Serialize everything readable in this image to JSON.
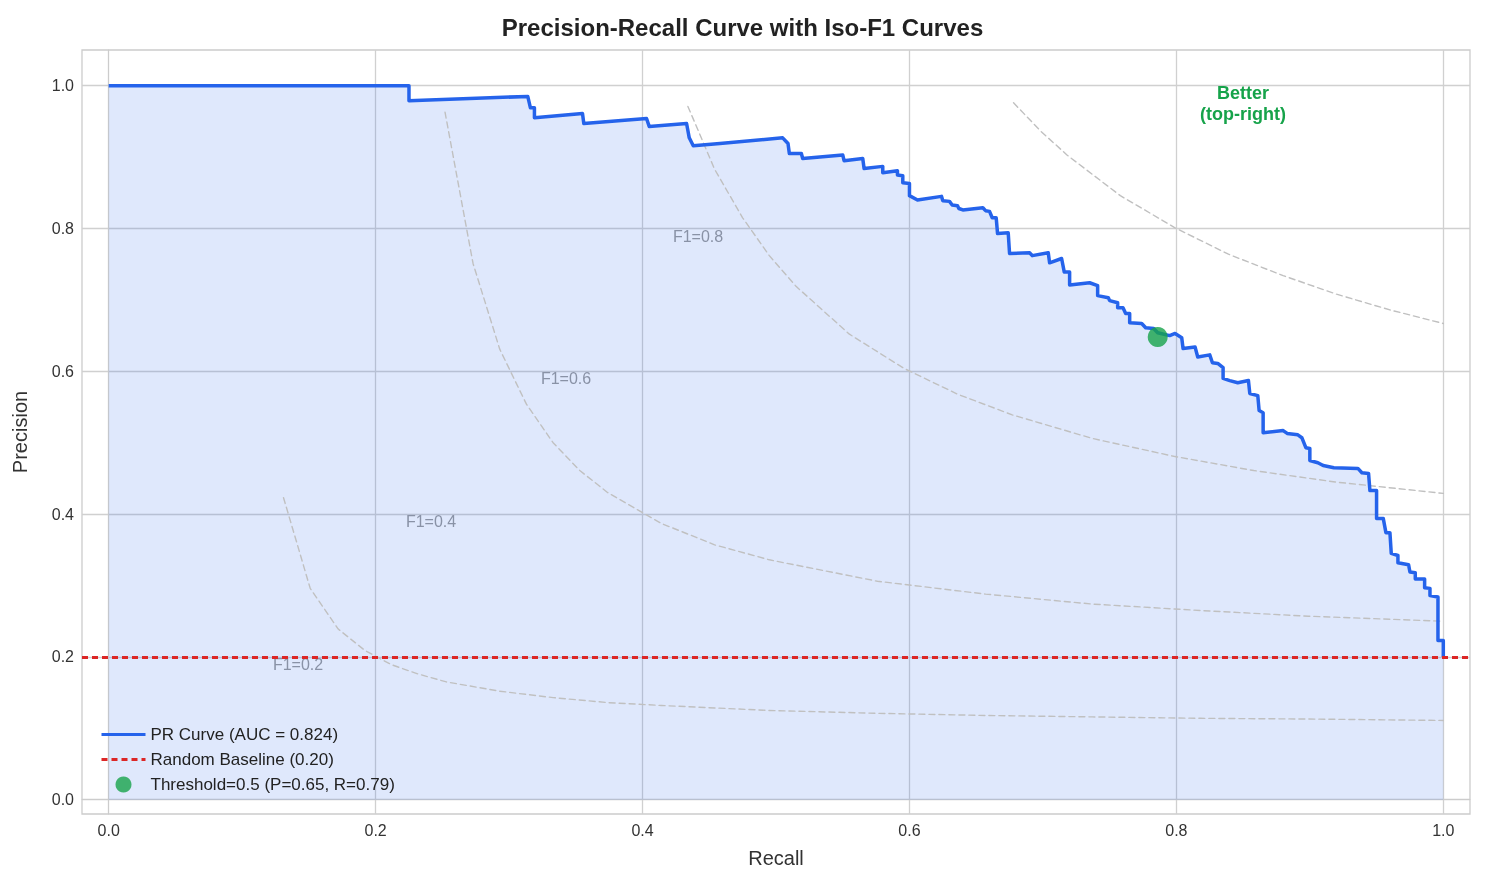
{
  "chart_data": {
    "type": "line",
    "title": "Precision-Recall Curve with Iso-F1 Curves",
    "xlabel": "Recall",
    "ylabel": "Precision",
    "xlim": [
      -0.02,
      1.02
    ],
    "ylim": [
      -0.02,
      1.05
    ],
    "xticks": [
      {
        "value": 0,
        "label": "0.0"
      },
      0.2,
      0.4,
      0.6,
      0.8,
      {
        "value": 1,
        "label": "1.0"
      }
    ],
    "yticks": [
      {
        "value": 0,
        "label": "0.0"
      },
      0.2,
      0.4,
      0.6,
      0.8,
      {
        "value": 1,
        "label": "1.0"
      }
    ],
    "grid": true,
    "legend": "bottom left",
    "marker": "none",
    "series": [
      {
        "color": "#c0c0c0",
        "line_style": "dashed",
        "x": [
          0.131,
          0.151,
          0.172,
          0.192,
          0.212,
          0.232,
          0.253,
          0.293,
          0.333,
          0.374,
          0.414,
          0.495,
          0.576,
          0.657,
          0.737,
          0.818,
          0.899,
          1.0
        ],
        "values": [
          0.423,
          0.296,
          0.239,
          0.209,
          0.189,
          0.176,
          0.165,
          0.152,
          0.143,
          0.136,
          0.132,
          0.125,
          0.121,
          0.118,
          0.116,
          0.114,
          0.113,
          0.111
        ]
      },
      {
        "color": "#c0c0c0",
        "line_style": "dashed",
        "x": [
          0.252,
          0.273,
          0.293,
          0.313,
          0.333,
          0.353,
          0.374,
          0.414,
          0.454,
          0.495,
          0.576,
          0.657,
          0.737,
          0.818,
          0.899,
          1.0
        ],
        "values": [
          0.963,
          0.751,
          0.631,
          0.554,
          0.5,
          0.461,
          0.43,
          0.387,
          0.357,
          0.336,
          0.306,
          0.288,
          0.274,
          0.265,
          0.257,
          0.25
        ]
      },
      {
        "color": "#c0c0c0",
        "line_style": "dashed",
        "x": [
          0.434,
          0.454,
          0.475,
          0.495,
          0.515,
          0.555,
          0.596,
          0.636,
          0.677,
          0.737,
          0.798,
          0.858,
          0.919,
          1.0
        ],
        "values": [
          0.971,
          0.883,
          0.815,
          0.762,
          0.719,
          0.652,
          0.604,
          0.568,
          0.539,
          0.506,
          0.481,
          0.461,
          0.445,
          0.429
        ]
      },
      {
        "color": "#c0c0c0",
        "line_style": "dashed",
        "x": [
          0.678,
          0.698,
          0.718,
          0.758,
          0.799,
          0.839,
          0.88,
          0.92,
          0.96,
          1.0
        ],
        "values": [
          0.976,
          0.937,
          0.903,
          0.846,
          0.801,
          0.764,
          0.734,
          0.708,
          0.686,
          0.667
        ]
      },
      {
        "type": "area",
        "name": "PR Curve (AUC = 0.824)",
        "color": "#2563eb",
        "line_style": "solid",
        "x": [
          0,
          0.225,
          0.225,
          0.314,
          0.316,
          0.319,
          0.319,
          0.355,
          0.356,
          0.403,
          0.405,
          0.433,
          0.435,
          0.438,
          0.458,
          0.505,
          0.509,
          0.51,
          0.519,
          0.52,
          0.55,
          0.551,
          0.565,
          0.566,
          0.58,
          0.58,
          0.591,
          0.591,
          0.595,
          0.595,
          0.6,
          0.6,
          0.606,
          0.624,
          0.625,
          0.63,
          0.632,
          0.636,
          0.637,
          0.64,
          0.655,
          0.657,
          0.66,
          0.662,
          0.665,
          0.666,
          0.674,
          0.675,
          0.69,
          0.692,
          0.704,
          0.705,
          0.714,
          0.716,
          0.72,
          0.72,
          0.735,
          0.741,
          0.741,
          0.749,
          0.75,
          0.756,
          0.756,
          0.76,
          0.762,
          0.765,
          0.765,
          0.774,
          0.777,
          0.783,
          0.786,
          0.795,
          0.799,
          0.804,
          0.805,
          0.814,
          0.816,
          0.825,
          0.827,
          0.831,
          0.835,
          0.835,
          0.84,
          0.846,
          0.854,
          0.855,
          0.861,
          0.862,
          0.865,
          0.865,
          0.88,
          0.883,
          0.891,
          0.894,
          0.897,
          0.9,
          0.9,
          0.906,
          0.91,
          0.918,
          0.936,
          0.939,
          0.944,
          0.945,
          0.95,
          0.95,
          0.955,
          0.957,
          0.96,
          0.961,
          0.966,
          0.966,
          0.974,
          0.975,
          0.979,
          0.979,
          0.986,
          0.986,
          0.99,
          0.99,
          0.996,
          0.996,
          1.0,
          1.0
        ],
        "values": [
          1.0,
          1.0,
          0.979,
          0.985,
          0.969,
          0.969,
          0.955,
          0.961,
          0.947,
          0.954,
          0.943,
          0.947,
          0.927,
          0.916,
          0.919,
          0.927,
          0.919,
          0.905,
          0.905,
          0.898,
          0.903,
          0.895,
          0.898,
          0.884,
          0.887,
          0.878,
          0.881,
          0.875,
          0.874,
          0.864,
          0.863,
          0.846,
          0.84,
          0.845,
          0.839,
          0.838,
          0.833,
          0.832,
          0.828,
          0.826,
          0.829,
          0.825,
          0.824,
          0.815,
          0.815,
          0.793,
          0.794,
          0.765,
          0.766,
          0.762,
          0.766,
          0.752,
          0.758,
          0.739,
          0.739,
          0.721,
          0.724,
          0.72,
          0.706,
          0.703,
          0.699,
          0.696,
          0.689,
          0.689,
          0.681,
          0.681,
          0.668,
          0.667,
          0.661,
          0.66,
          0.654,
          0.65,
          0.653,
          0.647,
          0.632,
          0.634,
          0.62,
          0.623,
          0.612,
          0.611,
          0.605,
          0.59,
          0.587,
          0.584,
          0.587,
          0.569,
          0.566,
          0.545,
          0.542,
          0.514,
          0.517,
          0.513,
          0.511,
          0.507,
          0.493,
          0.492,
          0.475,
          0.472,
          0.468,
          0.465,
          0.464,
          0.458,
          0.457,
          0.433,
          0.433,
          0.394,
          0.394,
          0.374,
          0.374,
          0.345,
          0.342,
          0.332,
          0.329,
          0.319,
          0.318,
          0.309,
          0.309,
          0.297,
          0.296,
          0.286,
          0.284,
          0.223,
          0.223,
          0.2
        ]
      },
      {
        "type": "scatter",
        "name": "Threshold=0.5 (P=0.65, R=0.79)",
        "color": "#16a34a",
        "marker": "circle",
        "x": [
          0.786
        ],
        "values": [
          0.648
        ]
      }
    ],
    "ref_lines": [
      {
        "axis": "y",
        "value": 0.2,
        "label": "Random Baseline (0.20)",
        "color": "#dc2626",
        "line_style": "dashed"
      }
    ],
    "annotations": [
      "F1=0.2",
      "F1=0.4",
      "F1=0.6",
      "F1=0.8",
      "Better\n(top-right)"
    ]
  }
}
